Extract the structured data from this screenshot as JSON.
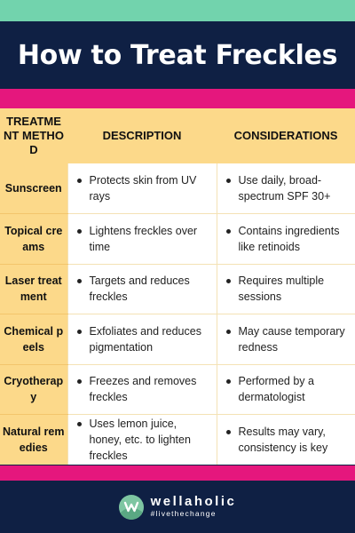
{
  "header": {
    "title": "How to Treat Freckles"
  },
  "colors": {
    "mint": "#72d3ad",
    "navy": "#0f2044",
    "pink": "#e5177d",
    "yellow": "#fcd98a"
  },
  "table": {
    "headers": [
      "TREATMENT METHOD",
      "DESCRIPTION",
      "CONSIDERATIONS"
    ],
    "rows": [
      {
        "method": "Sunscreen",
        "description": "Protects skin from UV rays",
        "considerations": "Use daily, broad-spectrum SPF 30+"
      },
      {
        "method": "Topical creams",
        "description": "Lightens freckles over time",
        "considerations": "Contains ingredients like retinoids"
      },
      {
        "method": "Laser treatment",
        "description": "Targets and reduces freckles",
        "considerations": "Requires multiple sessions"
      },
      {
        "method": "Chemical peels",
        "description": "Exfoliates and reduces pigmentation",
        "considerations": "May cause temporary redness"
      },
      {
        "method": "Cryotherapy",
        "description": "Freezes and removes freckles",
        "considerations": "Performed by a dermatologist"
      },
      {
        "method": "Natural remedies",
        "description": "Uses lemon juice, honey, etc. to lighten freckles",
        "considerations": "Results may vary, consistency is key"
      }
    ]
  },
  "footer": {
    "brand": "wellaholic",
    "tagline": "#livethechange",
    "logo_icon": "wellaholic-logo-icon"
  }
}
